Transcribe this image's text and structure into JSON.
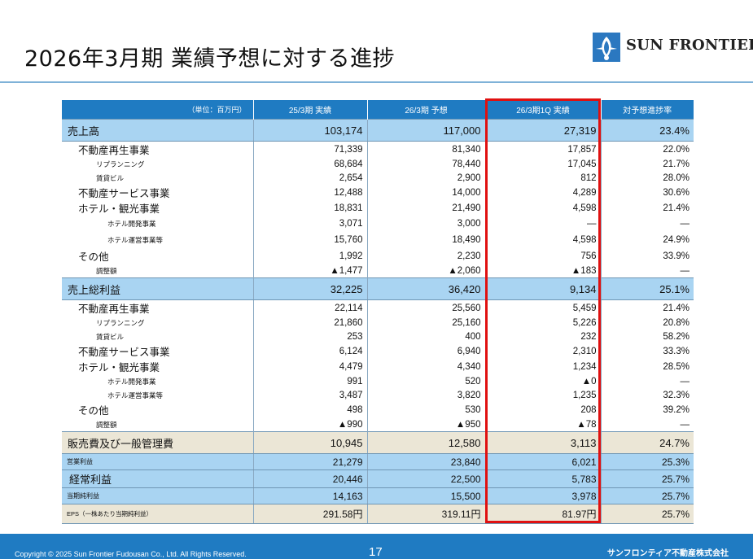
{
  "header": {
    "title": "2026年3月期 業績予想に対する進捗",
    "logo_text": "SUN FRONTIER"
  },
  "table": {
    "unit_label": "（単位：百万円）",
    "columns": [
      "25/3期 実績",
      "26/3期 予想",
      "26/3期1Q 実績",
      "対予想進捗率"
    ],
    "rows": [
      {
        "type": "major",
        "label": "売上高",
        "values": [
          "103,174",
          "117,000",
          "27,319",
          "23.4%"
        ]
      },
      {
        "type": "sub",
        "label": "不動産再生事業",
        "values": [
          "71,339",
          "81,340",
          "17,857",
          "22.0%"
        ]
      },
      {
        "type": "subsub",
        "label": "リプランニング",
        "values": [
          "68,684",
          "78,440",
          "17,045",
          "21.7%"
        ]
      },
      {
        "type": "subsub",
        "label": "賃貸ビル",
        "values": [
          "2,654",
          "2,900",
          "812",
          "28.0%"
        ]
      },
      {
        "type": "sub",
        "label": "不動産サービス事業",
        "values": [
          "12,488",
          "14,000",
          "4,289",
          "30.6%"
        ]
      },
      {
        "type": "sub",
        "label": "ホテル・観光事業",
        "values": [
          "18,831",
          "21,490",
          "4,598",
          "21.4%"
        ]
      },
      {
        "type": "hotel-tall",
        "label": "ホテル開発事業",
        "values": [
          "3,071",
          "3,000",
          "―",
          "―"
        ]
      },
      {
        "type": "hotel-tall",
        "label": "ホテル運営事業等",
        "values": [
          "15,760",
          "18,490",
          "4,598",
          "24.9%"
        ]
      },
      {
        "type": "sub",
        "label": "その他",
        "values": [
          "1,992",
          "2,230",
          "756",
          "33.9%"
        ]
      },
      {
        "type": "adj",
        "label": "調整額",
        "values": [
          "▲1,477",
          "▲2,060",
          "▲183",
          "―"
        ]
      },
      {
        "type": "major",
        "label": "売上総利益",
        "values": [
          "32,225",
          "36,420",
          "9,134",
          "25.1%"
        ]
      },
      {
        "type": "sub",
        "label": "不動産再生事業",
        "values": [
          "22,114",
          "25,560",
          "5,459",
          "21.4%"
        ]
      },
      {
        "type": "subsub",
        "label": "リプランニング",
        "values": [
          "21,860",
          "25,160",
          "5,226",
          "20.8%"
        ]
      },
      {
        "type": "subsub",
        "label": "賃貸ビル",
        "values": [
          "253",
          "400",
          "232",
          "58.2%"
        ]
      },
      {
        "type": "sub",
        "label": "不動産サービス事業",
        "values": [
          "6,124",
          "6,940",
          "2,310",
          "33.3%"
        ]
      },
      {
        "type": "sub",
        "label": "ホテル・観光事業",
        "values": [
          "4,479",
          "4,340",
          "1,234",
          "28.5%"
        ]
      },
      {
        "type": "hotel",
        "label": "ホテル開発事業",
        "values": [
          "991",
          "520",
          "▲0",
          "―"
        ]
      },
      {
        "type": "hotel",
        "label": "ホテル運営事業等",
        "values": [
          "3,487",
          "3,820",
          "1,235",
          "32.3%"
        ]
      },
      {
        "type": "sub",
        "label": "その他",
        "values": [
          "498",
          "530",
          "208",
          "39.2%"
        ]
      },
      {
        "type": "adj",
        "label": "調整額",
        "values": [
          "▲990",
          "▲950",
          "▲78",
          "―"
        ]
      },
      {
        "type": "major-sga",
        "label": "販売費及び一般管理費",
        "values": [
          "10,945",
          "12,580",
          "3,113",
          "24.7%"
        ]
      },
      {
        "type": "small",
        "label": "営業利益",
        "values": [
          "21,279",
          "23,840",
          "6,021",
          "25.3%"
        ]
      },
      {
        "type": "medium",
        "label": "経常利益",
        "values": [
          "20,446",
          "22,500",
          "5,783",
          "25.7%"
        ]
      },
      {
        "type": "small",
        "label": "当期純利益",
        "values": [
          "14,163",
          "15,500",
          "3,978",
          "25.7%"
        ]
      },
      {
        "type": "eps",
        "label": "EPS（一株あたり当期純利益）",
        "values": [
          "291.58円",
          "319.11円",
          "81.97円",
          "25.7%"
        ]
      }
    ]
  },
  "footer": {
    "copyright": "Copyright © 2025 Sun Frontier Fudousan Co., Ltd. All Rights Reserved.",
    "page_number": "17",
    "company": "サンフロンティア不動産株式会社"
  },
  "colors": {
    "header_blue": "#1f7bc2",
    "row_blue": "#a9d4f2",
    "row_beige": "#ebe6d6",
    "highlight_red": "#e01010"
  }
}
